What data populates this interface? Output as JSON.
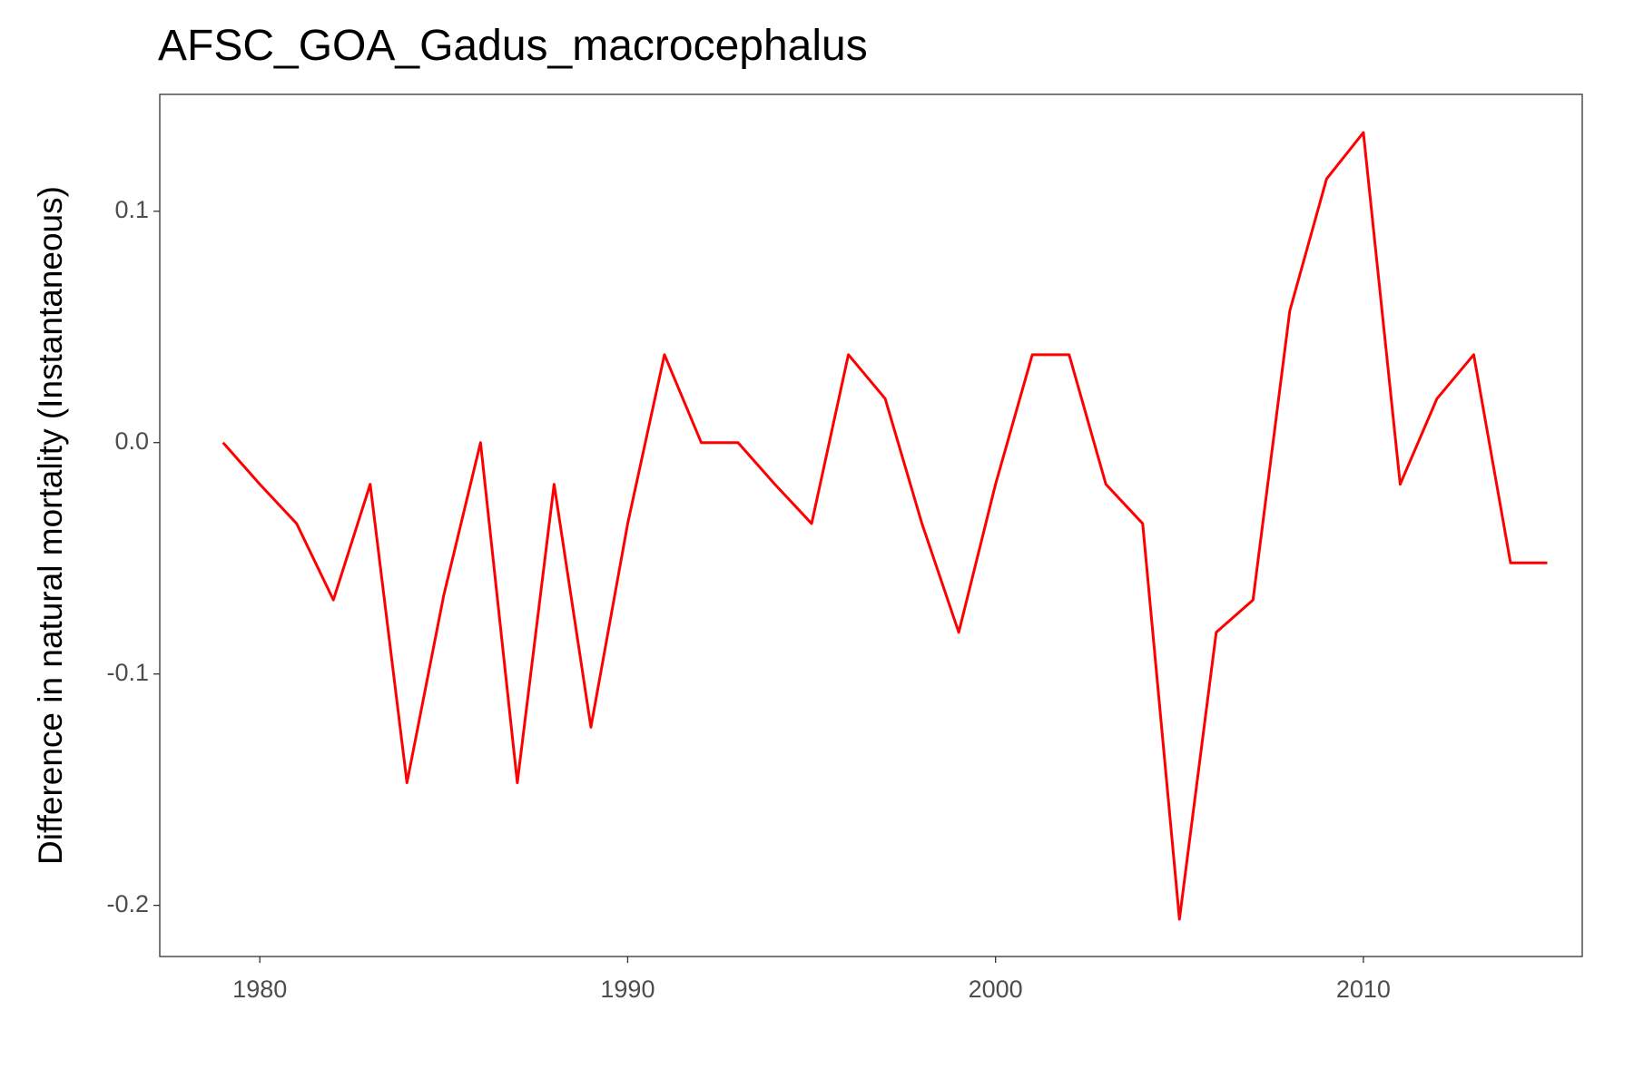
{
  "chart_data": {
    "type": "line",
    "title": "AFSC_GOA_Gadus_macrocephalus",
    "y_label": "Difference in natural mortality (Instantaneous)",
    "x": [
      1979,
      1980,
      1981,
      1982,
      1983,
      1984,
      1985,
      1986,
      1987,
      1988,
      1989,
      1990,
      1991,
      1992,
      1993,
      1994,
      1995,
      1996,
      1997,
      1998,
      1999,
      2000,
      2001,
      2002,
      2003,
      2004,
      2005,
      2006,
      2007,
      2008,
      2009,
      2010,
      2011,
      2012,
      2013,
      2014,
      2015
    ],
    "series": [
      {
        "color": "#ff0000",
        "values": [
          0.0,
          -0.018,
          -0.035,
          -0.068,
          -0.018,
          -0.147,
          -0.066,
          0.0,
          -0.147,
          -0.018,
          -0.123,
          -0.035,
          0.038,
          0.0,
          0.0,
          -0.018,
          -0.035,
          0.038,
          0.019,
          -0.035,
          -0.082,
          -0.018,
          0.038,
          0.038,
          -0.018,
          -0.035,
          -0.206,
          -0.082,
          -0.068,
          0.057,
          0.114,
          0.134,
          -0.018,
          0.019,
          0.038,
          -0.052,
          -0.052
        ]
      }
    ],
    "xlim": [
      1977.28,
      2015.95
    ],
    "xticks": [
      1980,
      1990,
      2000,
      2010
    ],
    "ylim": [
      -0.2221,
      0.1505
    ],
    "yticks": [
      -0.2,
      -0.1,
      {
        "value": 0,
        "label": "0.0"
      },
      0.1
    ],
    "grid": false
  }
}
